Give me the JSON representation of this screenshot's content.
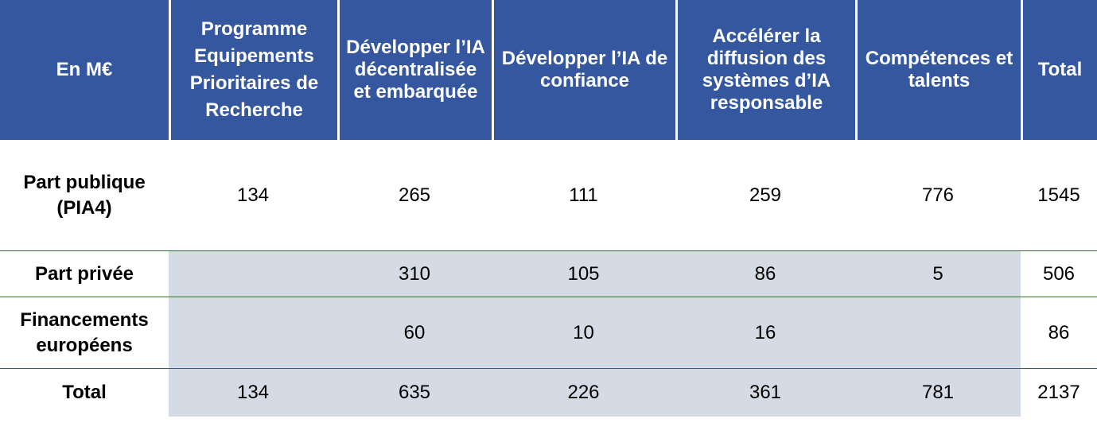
{
  "table": {
    "headers": [
      "En M€",
      "Programme Equipements Prioritaires de Recherche",
      "Développer l’IA décentralisée et embarquée",
      "Développer l’IA de confiance",
      "Accélérer la diffusion des systèmes d’IA responsable",
      "Compétences et talents",
      "Total"
    ],
    "rows": [
      {
        "label": "Part publique (PIA4)",
        "values": [
          "134",
          "265",
          "111",
          "259",
          "776",
          "1545"
        ]
      },
      {
        "label": "Part privée",
        "values": [
          "",
          "310",
          "105",
          "86",
          "5",
          "506"
        ]
      },
      {
        "label": "Financements européens",
        "values": [
          "",
          "60",
          "10",
          "16",
          "",
          "86"
        ]
      },
      {
        "label": "Total",
        "values": [
          "134",
          "635",
          "226",
          "361",
          "781",
          "2137"
        ]
      }
    ]
  },
  "colors": {
    "header_background": "#3457a0",
    "header_text": "#ffffff",
    "shaded_cell": "#d5dbe4",
    "divider": "#3457a0"
  }
}
